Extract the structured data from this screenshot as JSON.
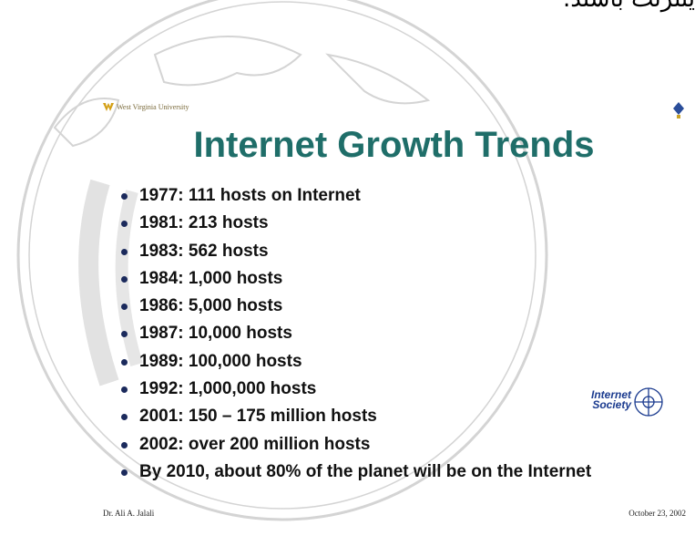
{
  "top_text": "ینترنت باشند.",
  "slide": {
    "logo_text": "West Virginia University",
    "title": "Internet Growth Trends",
    "bullets": [
      "1977: 111 hosts on Internet",
      "1981: 213 hosts",
      "1983: 562 hosts",
      "1984: 1,000 hosts",
      "1986: 5,000 hosts",
      "1987: 10,000 hosts",
      "1989: 100,000 hosts",
      "1992: 1,000,000 hosts",
      "2001: 150 – 175 million hosts",
      "2002: over 200 million hosts",
      "By 2010, about 80% of the planet will be on the Internet"
    ],
    "side_logo": [
      "Internet",
      "Society"
    ],
    "footer_left": "Dr. Ali A. Jalali",
    "footer_right": "October 23, 2002"
  }
}
